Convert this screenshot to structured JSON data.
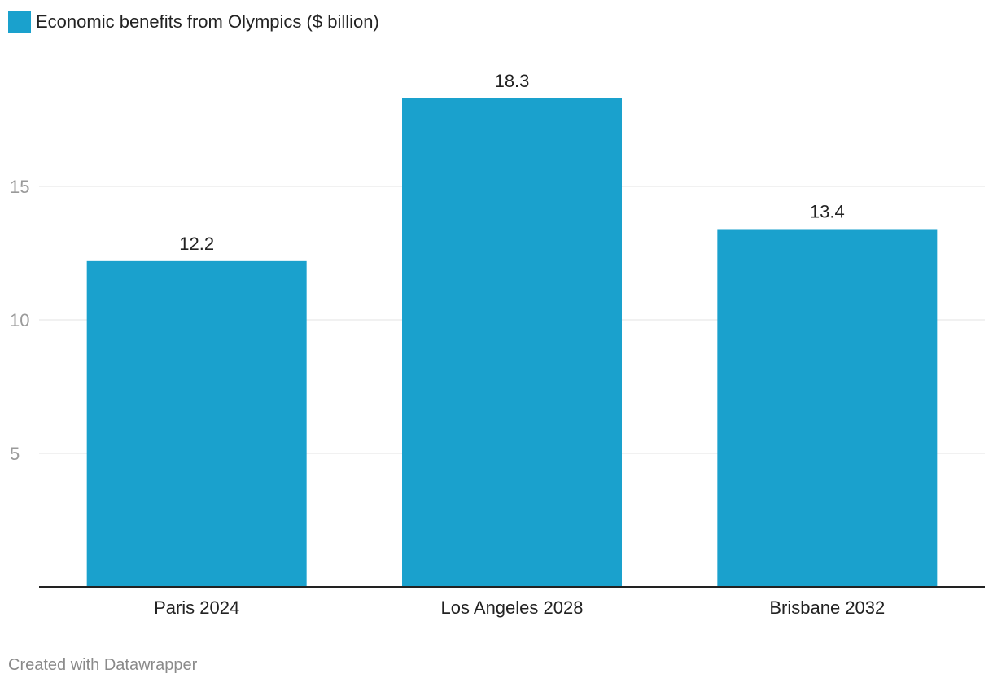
{
  "chart_data": {
    "type": "bar",
    "categories": [
      "Paris 2024",
      "Los Angeles 2028",
      "Brisbane 2032"
    ],
    "series": [
      {
        "name": "Economic benefits from Olympics ($ billion)",
        "values": [
          12.2,
          18.3,
          13.4
        ],
        "color": "#1aa1cd"
      }
    ],
    "data_labels": [
      "12.2",
      "18.3",
      "13.4"
    ],
    "title": "",
    "xlabel": "",
    "ylabel": "",
    "ylim": [
      0,
      20
    ],
    "yticks": [
      5,
      10,
      15
    ],
    "grid": true,
    "legend": "top-left"
  },
  "footer": {
    "credit": "Created with Datawrapper"
  },
  "colors": {
    "bar": "#1aa1cd",
    "grid": "#e3e3e3",
    "axis": "#222222"
  }
}
